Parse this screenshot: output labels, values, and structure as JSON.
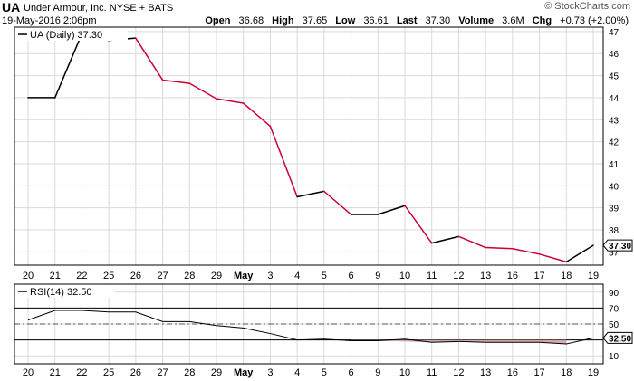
{
  "header": {
    "ticker": "UA",
    "company": "Under Armour, Inc.  NYSE + BATS",
    "datetime": "19-May-2016 2:06pm",
    "copyright": "© StockCharts.com",
    "open_label": "Open",
    "open_value": "36.68",
    "high_label": "High",
    "high_value": "37.65",
    "low_label": "Low",
    "low_value": "36.61",
    "last_label": "Last",
    "last_value": "37.30",
    "volume_label": "Volume",
    "volume_value": "3.6M",
    "chg_label": "Chg",
    "chg_value": "+0.73 (+2.00%)"
  },
  "chart_data": [
    {
      "type": "line",
      "legend": "UA (Daily) 37.30",
      "last_label": "37.30",
      "categories": [
        "20",
        "21",
        "22",
        "25",
        "26",
        "27",
        "28",
        "29",
        "May",
        "3",
        "4",
        "5",
        "6",
        "9",
        "10",
        "11",
        "12",
        "13",
        "16",
        "17",
        "18",
        "19"
      ],
      "values": [
        44.0,
        44.0,
        46.9,
        46.6,
        46.7,
        44.8,
        44.65,
        43.95,
        43.75,
        42.7,
        39.5,
        39.75,
        38.7,
        38.7,
        39.1,
        37.4,
        37.7,
        37.2,
        37.15,
        36.9,
        36.55,
        37.3
      ],
      "colors": [
        "#000000",
        "#000000",
        "#000000",
        "#000000",
        "#000000",
        "#cc0033",
        "#cc0033",
        "#cc0033",
        "#cc0033",
        "#cc0033",
        "#cc0033",
        "#000000",
        "#cc0033",
        "#000000",
        "#000000",
        "#cc0033",
        "#000000",
        "#cc0033",
        "#cc0033",
        "#cc0033",
        "#cc0033",
        "#000000"
      ],
      "y_ticks": [
        37,
        38,
        39,
        40,
        41,
        42,
        43,
        44,
        45,
        46,
        47
      ],
      "ylim": [
        36.4,
        47.2
      ],
      "grid": true
    },
    {
      "type": "line",
      "legend": "RSI(14) 32.50",
      "last_label": "32.50",
      "categories": [
        "20",
        "21",
        "22",
        "25",
        "26",
        "27",
        "28",
        "29",
        "May",
        "3",
        "4",
        "5",
        "6",
        "9",
        "10",
        "11",
        "12",
        "13",
        "16",
        "17",
        "18",
        "19"
      ],
      "values": [
        55,
        67,
        67,
        65,
        65,
        53,
        53,
        48,
        45,
        38,
        30,
        31,
        29,
        29,
        31,
        27,
        28,
        27,
        27,
        27,
        25,
        32.5
      ],
      "y_ticks": [
        10,
        30,
        50,
        70,
        90
      ],
      "reference_lines": [
        70,
        50,
        30
      ],
      "ylim": [
        0,
        100
      ],
      "grid": true
    }
  ],
  "colors": {
    "up": "#000000",
    "down": "#cc0033",
    "grid": "#d9d9d9",
    "border": "#000000",
    "rsi_fill": "#cc9999"
  }
}
